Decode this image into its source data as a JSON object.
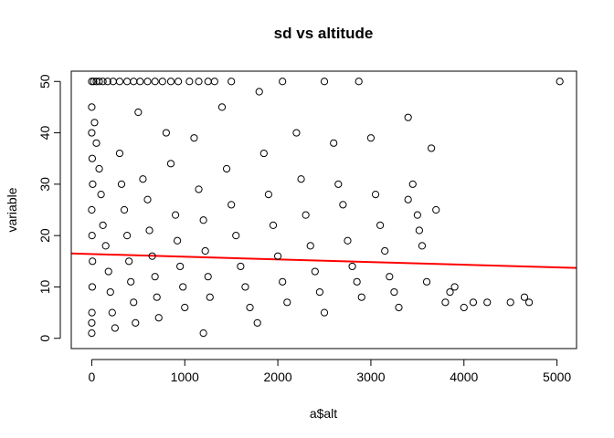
{
  "chart_data": {
    "type": "scatter",
    "title": "sd  vs altitude",
    "x_label": "a$alt",
    "y_label": "variable",
    "xlim": [
      -220,
      5210
    ],
    "ylim": [
      -2,
      52
    ],
    "xticks": [
      0,
      1000,
      2000,
      3000,
      4000,
      5000
    ],
    "yticks": [
      0,
      10,
      20,
      30,
      40,
      50
    ],
    "grid": false,
    "color": "#000000",
    "x": [
      0,
      20,
      50,
      80,
      120,
      170,
      230,
      300,
      380,
      450,
      520,
      600,
      680,
      760,
      850,
      930,
      1050,
      1150,
      1250,
      1320,
      1500,
      2050,
      2500,
      2870,
      5030,
      0,
      0,
      5,
      10,
      0,
      3,
      8,
      5,
      2,
      0,
      0,
      30,
      50,
      80,
      100,
      120,
      150,
      180,
      200,
      220,
      250,
      300,
      320,
      350,
      380,
      400,
      420,
      450,
      470,
      500,
      550,
      600,
      620,
      650,
      680,
      700,
      720,
      800,
      850,
      900,
      920,
      950,
      980,
      1000,
      1100,
      1150,
      1200,
      1220,
      1250,
      1270,
      1200,
      1400,
      1450,
      1500,
      1550,
      1600,
      1650,
      1700,
      1800,
      1850,
      1900,
      1950,
      2000,
      2050,
      2100,
      1780,
      2200,
      2250,
      2300,
      2350,
      2400,
      2450,
      2500,
      2600,
      2650,
      2700,
      2750,
      2800,
      2850,
      2900,
      3000,
      3050,
      3100,
      3150,
      3200,
      3250,
      3300,
      3400,
      3450,
      3500,
      3550,
      3600,
      3650,
      3700,
      3800,
      3850,
      3900,
      4000,
      4100,
      4250,
      4500,
      4650,
      4700,
      3400,
      3520
    ],
    "y": [
      50,
      50,
      50,
      50,
      50,
      50,
      50,
      50,
      50,
      50,
      50,
      50,
      50,
      50,
      50,
      50,
      50,
      50,
      50,
      50,
      50,
      50,
      50,
      50,
      50,
      45,
      40,
      35,
      30,
      25,
      20,
      15,
      10,
      5,
      1,
      3,
      42,
      38,
      33,
      28,
      22,
      18,
      13,
      9,
      5,
      2,
      36,
      30,
      25,
      20,
      15,
      11,
      7,
      3,
      44,
      31,
      27,
      21,
      16,
      12,
      8,
      4,
      40,
      34,
      24,
      19,
      14,
      10,
      6,
      39,
      29,
      23,
      17,
      12,
      8,
      1,
      45,
      33,
      26,
      20,
      14,
      10,
      6,
      48,
      36,
      28,
      22,
      16,
      11,
      7,
      3,
      40,
      31,
      24,
      18,
      13,
      9,
      5,
      38,
      30,
      26,
      19,
      14,
      11,
      8,
      39,
      28,
      22,
      17,
      12,
      9,
      6,
      43,
      30,
      24,
      18,
      11,
      37,
      25,
      7,
      9,
      10,
      6,
      7,
      7,
      7,
      8,
      7,
      27,
      21
    ],
    "regression": {
      "intercept": 16.4,
      "slope": -0.00052,
      "color": "#ff0000"
    }
  }
}
